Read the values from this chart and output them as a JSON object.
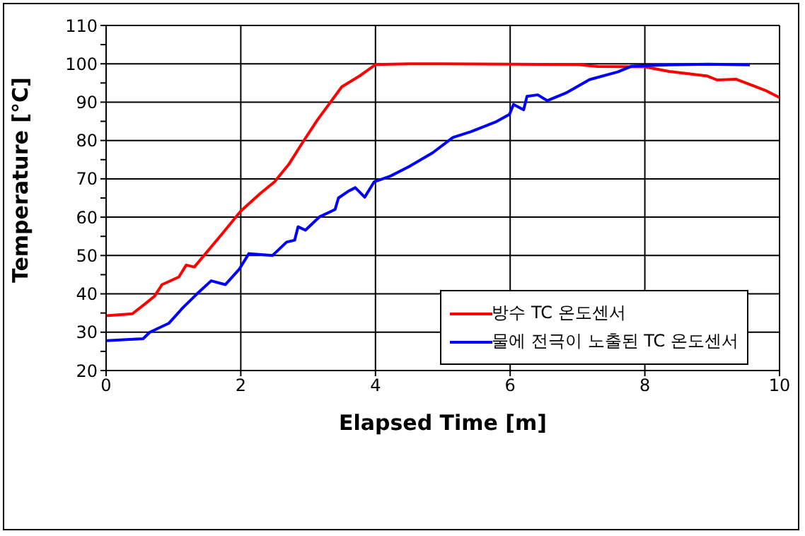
{
  "chart_data": {
    "type": "line",
    "xlabel": "Elapsed Time [m]",
    "ylabel": "Temperature [°C]",
    "xlim": [
      0,
      10
    ],
    "xticks": [
      0,
      2,
      4,
      6,
      8,
      10
    ],
    "ylim": [
      20,
      110
    ],
    "yticks": [
      20,
      {
        "value": 25,
        "label": null
      },
      30,
      {
        "value": 35,
        "label": null
      },
      40,
      {
        "value": 45,
        "label": null
      },
      50,
      {
        "value": 55,
        "label": null
      },
      60,
      {
        "value": 65,
        "label": null
      },
      70,
      {
        "value": 75,
        "label": null
      },
      80,
      {
        "value": 85,
        "label": null
      },
      90,
      {
        "value": 95,
        "label": null
      },
      100,
      {
        "value": 105,
        "label": null
      },
      110
    ],
    "grid": true,
    "legend": "right",
    "marker": "none",
    "line_style": "solid",
    "series": [
      {
        "name": "방수 TC 온도센서",
        "color": "#ff0000",
        "x": [
          0,
          0.39,
          0.58,
          0.72,
          0.83,
          1.08,
          1.19,
          1.31,
          1.72,
          2.0,
          2.29,
          2.5,
          2.71,
          2.93,
          3.14,
          3.5,
          3.78,
          4.0,
          4.5,
          5.0,
          6.0,
          7.0,
          7.3,
          8.0,
          8.36,
          8.93,
          9.07,
          9.35,
          9.62,
          9.81,
          10.0
        ],
        "values": [
          34.3,
          34.8,
          37.4,
          39.4,
          42.4,
          44.4,
          47.5,
          47,
          55.6,
          61.6,
          66.2,
          69.2,
          73.7,
          79.8,
          85.4,
          94,
          97,
          99.8,
          100,
          100,
          99.9,
          99.8,
          99.3,
          99.2,
          98,
          96.8,
          95.8,
          96,
          94.2,
          92.9,
          91.2
        ]
      },
      {
        "name": "물에 전극이 노출된 TC 온도센서",
        "color": "#0000ff",
        "x": [
          0,
          0.55,
          0.65,
          0.93,
          1.14,
          1.35,
          1.56,
          1.77,
          1.98,
          2.12,
          2.47,
          2.68,
          2.8,
          2.85,
          2.96,
          3.17,
          3.4,
          3.45,
          3.59,
          3.7,
          3.84,
          3.98,
          4.22,
          4.5,
          4.85,
          5.15,
          5.42,
          5.78,
          5.99,
          6.05,
          6.2,
          6.25,
          6.41,
          6.55,
          6.83,
          7.18,
          7.6,
          7.81,
          8.36,
          8.93,
          9.56
        ],
        "values": [
          27.8,
          28.3,
          30,
          32.3,
          36.4,
          40,
          43.4,
          42.4,
          46.5,
          50.5,
          50,
          53.5,
          54,
          57.5,
          56.6,
          60.1,
          62,
          65,
          66.7,
          67.7,
          65.2,
          69.2,
          70.7,
          73.2,
          76.8,
          80.8,
          82.3,
          84.8,
          86.8,
          89.4,
          88,
          91.5,
          91.9,
          90.4,
          92.4,
          95.9,
          97.9,
          99.4,
          99.7,
          99.9,
          99.7
        ]
      }
    ]
  }
}
